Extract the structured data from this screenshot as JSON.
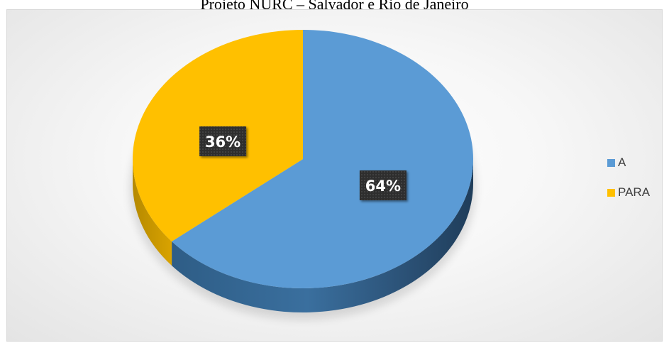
{
  "chart_data": {
    "type": "pie",
    "title": "Projeto NURC – Salvador e Rio de Janeiro",
    "categories": [
      "A",
      "PARA"
    ],
    "values": [
      64,
      36
    ],
    "data_labels": [
      "64%",
      "36%"
    ],
    "colors": [
      "#5b9bd5",
      "#ffc000"
    ],
    "legend_position": "right",
    "style": "3d-pie"
  }
}
